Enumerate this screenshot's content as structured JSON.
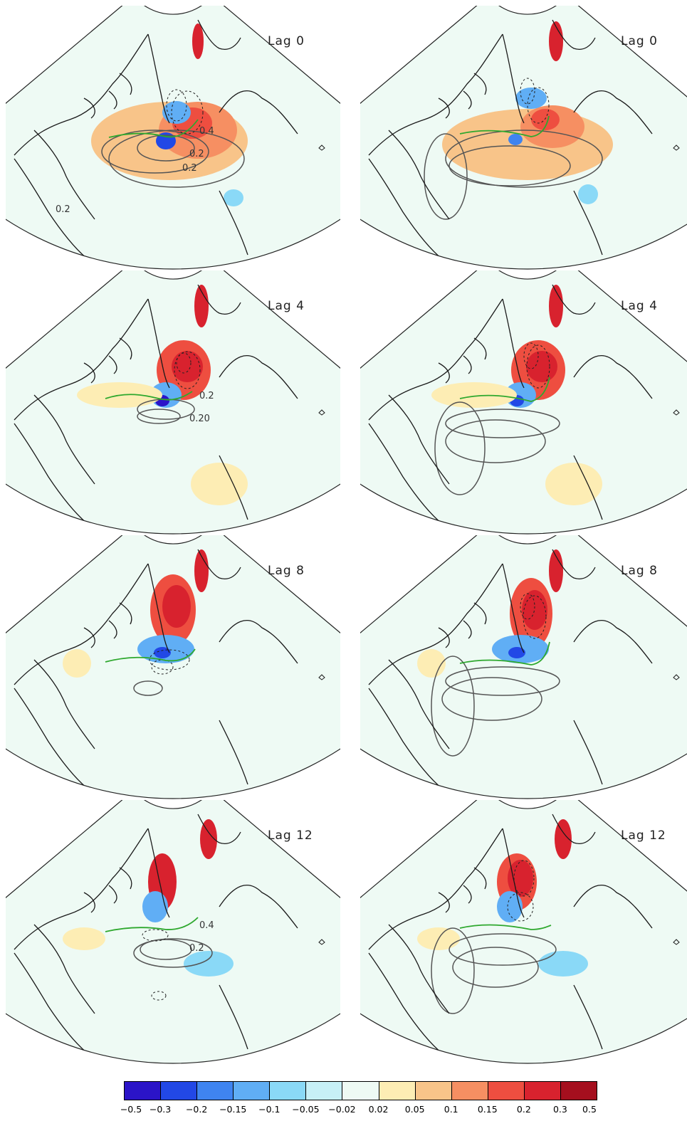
{
  "panels": [
    {
      "label": "Lag 0",
      "column": "left",
      "row": 0,
      "contour_labels": [
        "0.2",
        "0.4",
        "0.2",
        "0.2"
      ]
    },
    {
      "label": "Lag 0",
      "column": "right",
      "row": 0,
      "contour_labels": []
    },
    {
      "label": "Lag 4",
      "column": "left",
      "row": 1,
      "contour_labels": [
        "0.20",
        "0.2"
      ]
    },
    {
      "label": "Lag 4",
      "column": "right",
      "row": 1,
      "contour_labels": []
    },
    {
      "label": "Lag 8",
      "column": "left",
      "row": 2,
      "contour_labels": []
    },
    {
      "label": "Lag 8",
      "column": "right",
      "row": 2,
      "contour_labels": []
    },
    {
      "label": "Lag 12",
      "column": "left",
      "row": 3,
      "contour_labels": [
        "0.2",
        "0.4"
      ]
    },
    {
      "label": "Lag 12",
      "column": "right",
      "row": 3,
      "contour_labels": []
    }
  ],
  "colorbar": {
    "ticks": [
      "−0.5",
      "−0.3",
      "−0.2",
      "−0.15",
      "−0.1",
      "−0.05",
      "−0.02",
      "0.02",
      "0.05",
      "0.1",
      "0.15",
      "0.2",
      "0.3",
      "0.5"
    ],
    "colors": [
      "#2b14c8",
      "#2248e6",
      "#3f84f0",
      "#60aef5",
      "#8ad9f7",
      "#c7f0f7",
      "#eefaf4",
      "#fdedb4",
      "#f8c489",
      "#f68f62",
      "#ee4e40",
      "#d8222e",
      "#a50f1e"
    ]
  },
  "colors": {
    "coast": "#1a1a1a",
    "contour_positive": "#555555",
    "contour_negative": "#222222",
    "boundary_line": "#2ea82e"
  }
}
